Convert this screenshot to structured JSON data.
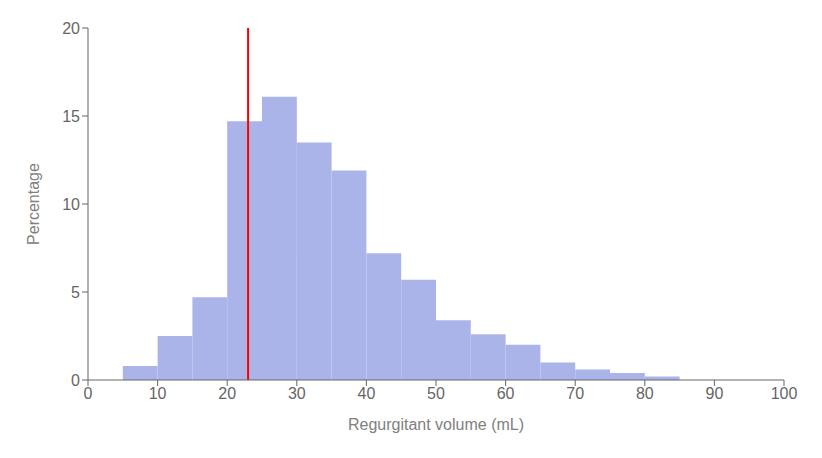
{
  "chart_data": {
    "type": "histogram",
    "bins": [
      5,
      10,
      15,
      20,
      25,
      30,
      35,
      40,
      45,
      50,
      55,
      60,
      65,
      70,
      75,
      80,
      85
    ],
    "values": [
      0.8,
      2.5,
      4.7,
      14.7,
      16.1,
      13.5,
      11.9,
      7.2,
      5.7,
      3.4,
      2.6,
      2.0,
      1.0,
      0.6,
      0.4,
      0.2
    ],
    "color": "#aab4e8",
    "xlabel": "Regurgitant volume (mL)",
    "ylabel": "Percentage",
    "xlim": [
      0,
      100
    ],
    "ylim": [
      0,
      20
    ],
    "xticks": [
      0,
      10,
      20,
      30,
      40,
      50,
      60,
      70,
      80,
      90,
      100
    ],
    "yticks": [
      0,
      5,
      10,
      15,
      20
    ],
    "grid": false,
    "reference_line": {
      "x": 23,
      "color": "#ff0000"
    }
  }
}
